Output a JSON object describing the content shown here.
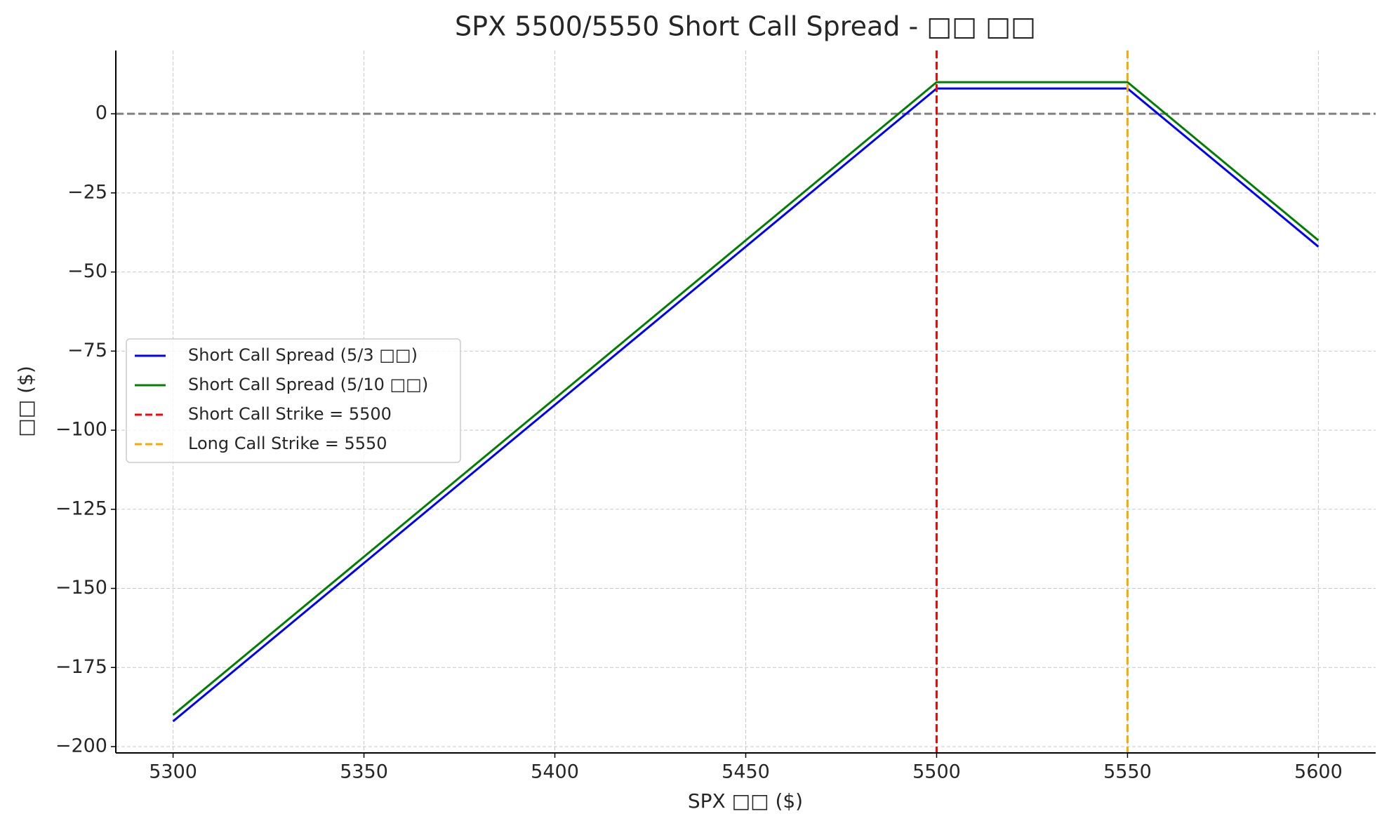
{
  "chart_data": {
    "type": "line",
    "title": "SPX 5500/5550 Short Call Spread - □□ □□",
    "x_label": "SPX □□ ($)",
    "y_label": "□□ ($)",
    "series": [
      {
        "name": "Short Call Spread (5/3 □□)",
        "color": "#0000ff",
        "x": [
          5300,
          5500,
          5550,
          5600
        ],
        "values": [
          -192,
          8,
          8,
          -42
        ]
      },
      {
        "name": "Short Call Spread (5/10 □□)",
        "color": "#008000",
        "x": [
          5300,
          5500,
          5550,
          5600
        ],
        "values": [
          -190,
          10,
          10,
          -40
        ]
      }
    ],
    "vlines": [
      {
        "name": "Short Call Strike = 5500",
        "color": "#ff0000",
        "x": 5500
      },
      {
        "name": "Long Call Strike = 5550",
        "color": "#ffa500",
        "x": 5550
      }
    ],
    "hline": {
      "y": 0,
      "color": "#808080"
    },
    "xlim": [
      5285,
      5615
    ],
    "ylim": [
      -202,
      20
    ],
    "xticks": [
      5300,
      5350,
      5400,
      5450,
      5500,
      5550,
      5600
    ],
    "yticks": [
      0,
      {
        "value": -25,
        "label": "−25"
      },
      {
        "value": -50,
        "label": "−50"
      },
      {
        "value": -75,
        "label": "−75"
      },
      {
        "value": -100,
        "label": "−100"
      },
      {
        "value": -125,
        "label": "−125"
      },
      {
        "value": -150,
        "label": "−150"
      },
      {
        "value": -175,
        "label": "−175"
      },
      {
        "value": -200,
        "label": "−200"
      }
    ],
    "grid": true,
    "legend": "center left"
  }
}
